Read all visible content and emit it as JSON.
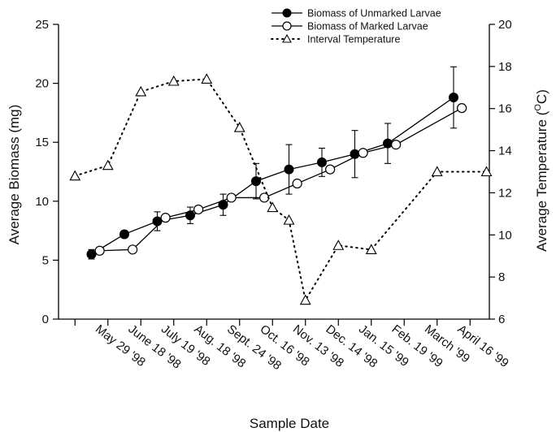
{
  "chart_data": {
    "type": "line",
    "xlabel": "Sample Date",
    "ylabel_left": "Average Biomass (mg)",
    "ylabel_right_prefix": "Average Temperature (",
    "ylabel_right_sup": "O",
    "ylabel_right_suffix": "C)",
    "ylim_left": [
      0,
      25
    ],
    "ylim_right": [
      6,
      20
    ],
    "yticks_left": [
      "0",
      "5",
      "10",
      "15",
      "20",
      "25"
    ],
    "yticks_right": [
      "6",
      "8",
      "10",
      "12",
      "14",
      "16",
      "18",
      "20"
    ],
    "categories": [
      "May 29 '98",
      "June 18 '98",
      "July 19 '98",
      "Aug. 18 '98",
      "Sept. 24 '98",
      "Oct. 16 '98",
      "Nov. 13 '98",
      "Dec. 14 '98",
      "Jan. 15 '99",
      "Feb. 19 '99",
      "March '99",
      "April 16 '99"
    ],
    "legend_position": "top-right",
    "series": [
      {
        "name": "Biomass of Unmarked Larvae",
        "axis": "left",
        "marker": "filled-circle",
        "line": "solid",
        "x": [
          1,
          2,
          3,
          4,
          5,
          6,
          7,
          8,
          9,
          10,
          12
        ],
        "values": [
          5.5,
          7.2,
          8.3,
          8.8,
          9.7,
          11.7,
          12.7,
          13.3,
          14.0,
          14.9,
          18.8
        ],
        "error": [
          0.4,
          0.3,
          0.8,
          0.7,
          0.9,
          1.5,
          2.1,
          1.2,
          2.0,
          1.7,
          2.6
        ]
      },
      {
        "name": "Biomass of Marked Larvae",
        "axis": "left",
        "marker": "open-circle",
        "line": "solid",
        "x": [
          1.25,
          2.25,
          3.25,
          4.25,
          5.25,
          6.25,
          7.25,
          8.25,
          9.25,
          10.25,
          12.25
        ],
        "values": [
          5.8,
          5.9,
          8.6,
          9.3,
          10.3,
          10.3,
          11.5,
          12.7,
          14.1,
          14.8,
          17.9
        ],
        "error": [
          0,
          0,
          0,
          0,
          0,
          0,
          0,
          0,
          0,
          0,
          0
        ]
      },
      {
        "name": "Interval Temperature",
        "axis": "right",
        "marker": "open-triangle",
        "line": "dotted",
        "x": [
          0.5,
          1.5,
          2.5,
          3.5,
          4.5,
          5.5,
          6.5,
          7.0,
          7.5,
          8.5,
          9.5,
          11.5,
          13.0
        ],
        "values": [
          12.8,
          13.3,
          16.8,
          17.3,
          17.4,
          15.1,
          11.3,
          10.7,
          6.9,
          9.5,
          9.3,
          13.0,
          13.0
        ]
      }
    ]
  }
}
